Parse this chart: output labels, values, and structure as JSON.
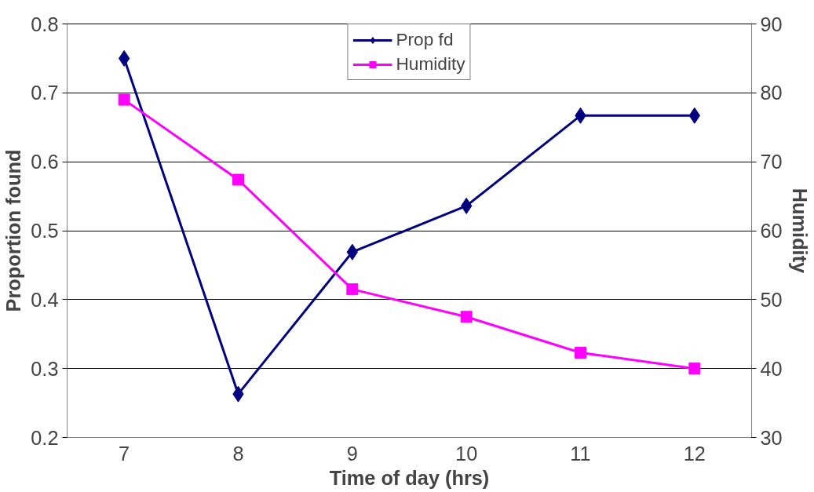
{
  "chart_data": {
    "type": "line",
    "xlabel": "Time of day (hrs)",
    "ylabel": "Proportion found",
    "y2label": "Humidity",
    "categories": [
      "7",
      "8",
      "9",
      "10",
      "11",
      "12"
    ],
    "series": [
      {
        "name": "Prop fd",
        "color": "#000080",
        "marker": "diamond",
        "values": [
          0.75,
          0.263,
          0.469,
          0.536,
          0.667,
          0.667
        ]
      },
      {
        "name": "Humidity",
        "color": "#ff00ff",
        "marker": "square",
        "axis": "y2",
        "values": [
          79,
          67.4,
          51.5,
          47.5,
          42.3,
          40
        ]
      }
    ],
    "ylim": [
      0.2,
      0.8
    ],
    "yticks": [
      0.2,
      0.3,
      0.4,
      0.5,
      0.6,
      0.7,
      0.8
    ],
    "y2lim": [
      30,
      90
    ],
    "y2ticks": [
      30,
      40,
      50,
      60,
      70,
      80,
      90
    ],
    "grid": "y",
    "legend": "top",
    "line_style": "solid"
  }
}
